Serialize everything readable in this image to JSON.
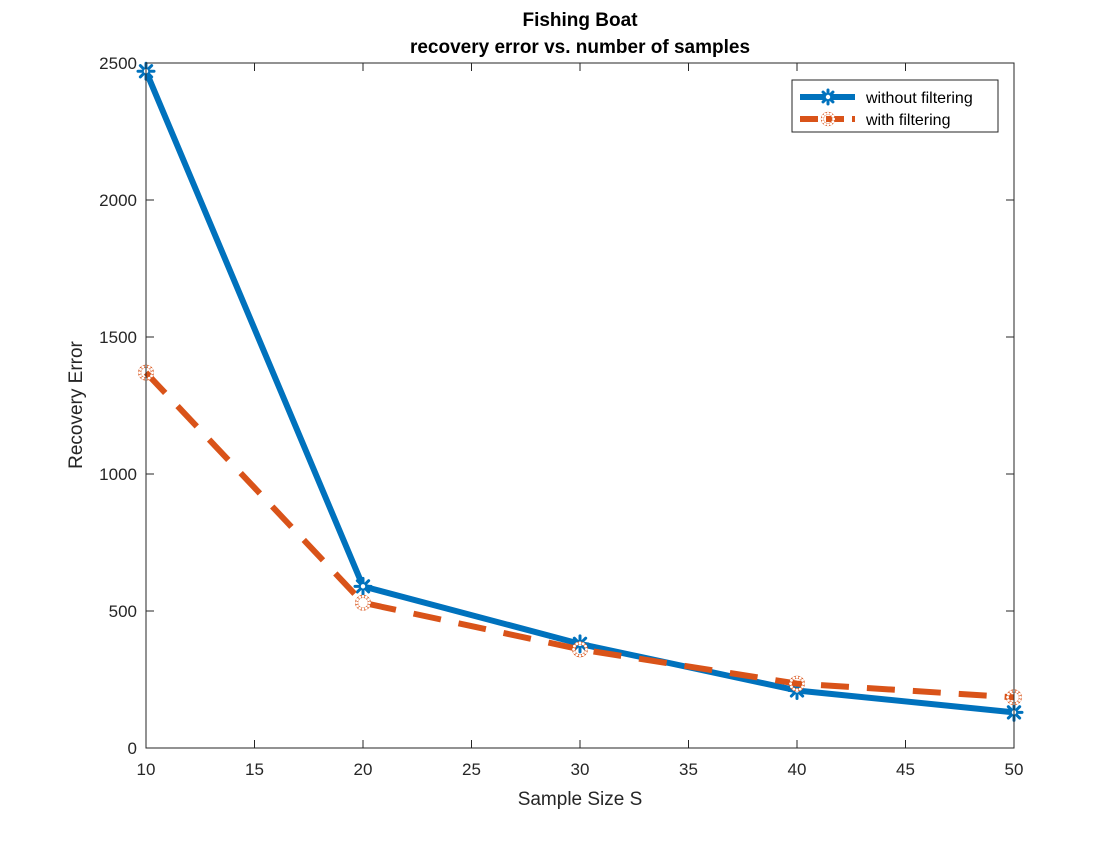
{
  "chart_data": {
    "type": "line",
    "title": "Fishing Boat",
    "subtitle": "recovery error vs. number of samples",
    "xlabel": "Sample Size S",
    "ylabel": "Recovery Error",
    "xlim": [
      10,
      50
    ],
    "ylim": [
      0,
      2500
    ],
    "xticks": [
      10,
      15,
      20,
      25,
      30,
      35,
      40,
      45,
      50
    ],
    "yticks": [
      0,
      500,
      1000,
      1500,
      2000,
      2500
    ],
    "grid": false,
    "legend_position": "top-right",
    "series": [
      {
        "name": "without filtering",
        "color": "#0072BD",
        "line_style": "solid",
        "marker": "asterisk",
        "x": [
          10,
          20,
          30,
          40,
          50
        ],
        "values": [
          2470,
          590,
          380,
          210,
          130
        ]
      },
      {
        "name": "with filtering",
        "color": "#D95319",
        "line_style": "dashed",
        "marker": "circle",
        "x": [
          10,
          20,
          30,
          40,
          50
        ],
        "values": [
          1370,
          530,
          360,
          235,
          185
        ]
      }
    ]
  }
}
